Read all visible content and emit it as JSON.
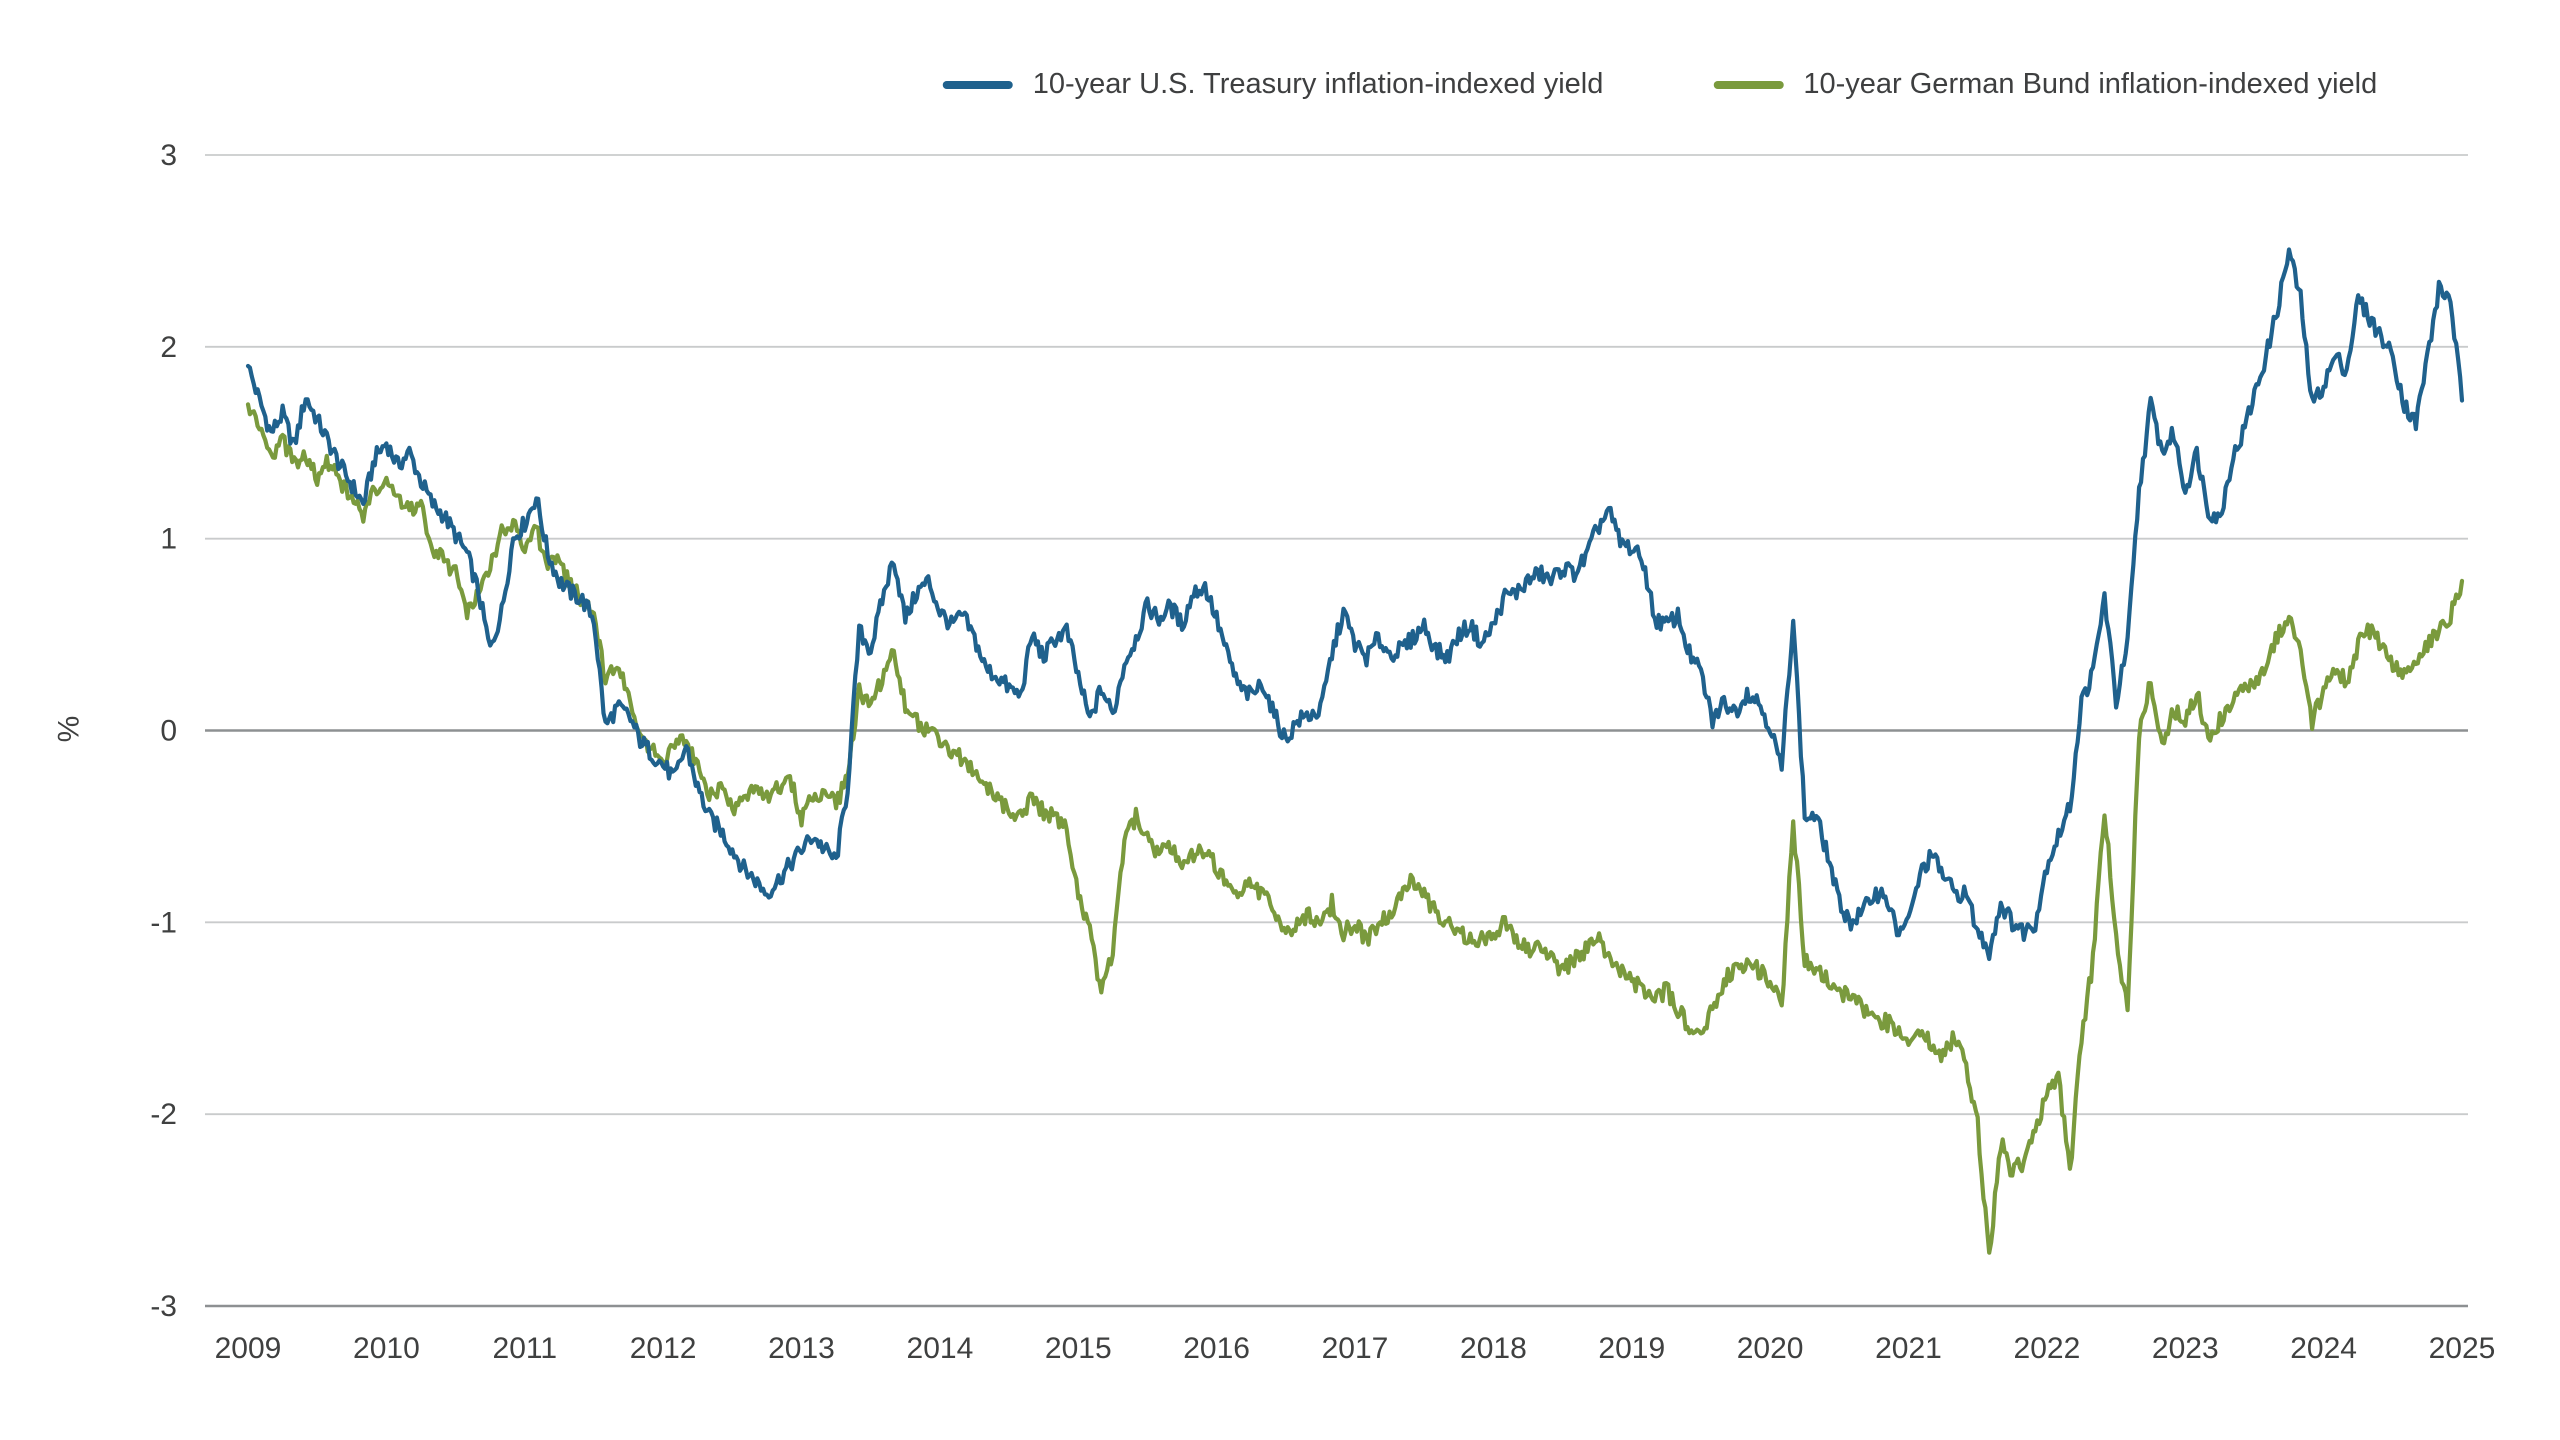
{
  "page": {
    "background": "#ffffff"
  },
  "chart_data": {
    "type": "line",
    "title": "",
    "xlabel": "",
    "ylabel": "%",
    "ylim": [
      -3,
      3
    ],
    "grid": "horizontal",
    "legend_position": "top-center",
    "x_start": 2009,
    "x_step_months": 1,
    "x_ticks": [
      2009,
      2010,
      2011,
      2012,
      2013,
      2014,
      2015,
      2016,
      2017,
      2018,
      2019,
      2020,
      2021,
      2022,
      2023,
      2024,
      2025
    ],
    "y_ticks": [
      3,
      2,
      1,
      0,
      -1,
      -2,
      -3
    ],
    "series": [
      {
        "name": "10-year U.S. Treasury inflation-indexed yield",
        "color": "#1f618d",
        "values": [
          1.9,
          1.72,
          1.55,
          1.65,
          1.48,
          1.74,
          1.62,
          1.5,
          1.38,
          1.28,
          1.18,
          1.42,
          1.5,
          1.38,
          1.45,
          1.3,
          1.18,
          1.12,
          1.02,
          0.92,
          0.72,
          0.42,
          0.62,
          1.0,
          1.08,
          1.22,
          0.92,
          0.78,
          0.72,
          0.68,
          0.58,
          0.02,
          0.12,
          0.08,
          -0.05,
          -0.12,
          -0.18,
          -0.25,
          -0.08,
          -0.3,
          -0.45,
          -0.52,
          -0.62,
          -0.72,
          -0.78,
          -0.85,
          -0.78,
          -0.7,
          -0.62,
          -0.55,
          -0.62,
          -0.68,
          -0.3,
          0.52,
          0.42,
          0.68,
          0.9,
          0.58,
          0.72,
          0.78,
          0.62,
          0.55,
          0.6,
          0.48,
          0.32,
          0.28,
          0.22,
          0.18,
          0.5,
          0.38,
          0.48,
          0.52,
          0.28,
          0.05,
          0.22,
          0.08,
          0.35,
          0.48,
          0.65,
          0.58,
          0.65,
          0.55,
          0.72,
          0.75,
          0.58,
          0.38,
          0.22,
          0.18,
          0.25,
          0.08,
          -0.05,
          0.05,
          0.08,
          0.1,
          0.4,
          0.62,
          0.45,
          0.38,
          0.48,
          0.4,
          0.42,
          0.48,
          0.55,
          0.42,
          0.38,
          0.5,
          0.55,
          0.45,
          0.55,
          0.7,
          0.72,
          0.78,
          0.82,
          0.78,
          0.85,
          0.82,
          0.9,
          1.05,
          1.15,
          0.98,
          0.95,
          0.88,
          0.58,
          0.55,
          0.6,
          0.4,
          0.3,
          0.05,
          0.15,
          0.1,
          0.2,
          0.15,
          0.02,
          -0.2,
          0.6,
          -0.45,
          -0.45,
          -0.65,
          -0.9,
          -1.0,
          -0.95,
          -0.85,
          -0.85,
          -1.05,
          -1.0,
          -0.75,
          -0.65,
          -0.75,
          -0.85,
          -0.85,
          -1.05,
          -1.15,
          -0.9,
          -1.0,
          -1.05,
          -1.0,
          -0.7,
          -0.55,
          -0.4,
          0.15,
          0.3,
          0.7,
          0.15,
          0.45,
          1.25,
          1.7,
          1.45,
          1.55,
          1.25,
          1.45,
          1.15,
          1.1,
          1.4,
          1.55,
          1.75,
          1.95,
          2.2,
          2.5,
          2.25,
          1.7,
          1.8,
          1.95,
          1.88,
          2.25,
          2.15,
          2.05,
          1.95,
          1.7,
          1.6,
          1.95,
          2.3,
          2.25,
          1.72
        ]
      },
      {
        "name": "10-year German Bund inflation-indexed yield",
        "color": "#7a9a3d",
        "values": [
          1.7,
          1.55,
          1.42,
          1.52,
          1.38,
          1.45,
          1.32,
          1.4,
          1.28,
          1.22,
          1.12,
          1.25,
          1.3,
          1.2,
          1.15,
          1.18,
          0.95,
          0.88,
          0.82,
          0.62,
          0.7,
          0.85,
          1.05,
          1.08,
          0.95,
          1.05,
          0.85,
          0.9,
          0.75,
          0.68,
          0.62,
          0.25,
          0.35,
          0.18,
          0.0,
          -0.1,
          -0.15,
          -0.08,
          -0.05,
          -0.2,
          -0.35,
          -0.3,
          -0.42,
          -0.35,
          -0.28,
          -0.35,
          -0.3,
          -0.25,
          -0.45,
          -0.35,
          -0.3,
          -0.4,
          -0.2,
          0.2,
          0.12,
          0.28,
          0.4,
          0.12,
          0.05,
          -0.02,
          -0.05,
          -0.12,
          -0.15,
          -0.22,
          -0.3,
          -0.35,
          -0.42,
          -0.45,
          -0.35,
          -0.42,
          -0.45,
          -0.52,
          -0.85,
          -1.05,
          -1.38,
          -1.15,
          -0.58,
          -0.45,
          -0.55,
          -0.65,
          -0.6,
          -0.7,
          -0.65,
          -0.62,
          -0.72,
          -0.82,
          -0.85,
          -0.8,
          -0.85,
          -0.95,
          -1.05,
          -1.0,
          -0.95,
          -1.02,
          -0.9,
          -1.05,
          -1.0,
          -1.1,
          -1.02,
          -0.95,
          -0.88,
          -0.78,
          -0.85,
          -0.95,
          -1.0,
          -1.05,
          -1.1,
          -1.08,
          -1.05,
          -1.0,
          -1.1,
          -1.15,
          -1.1,
          -1.2,
          -1.25,
          -1.2,
          -1.15,
          -1.08,
          -1.2,
          -1.25,
          -1.3,
          -1.35,
          -1.42,
          -1.35,
          -1.45,
          -1.55,
          -1.6,
          -1.45,
          -1.3,
          -1.25,
          -1.22,
          -1.25,
          -1.3,
          -1.45,
          -0.48,
          -1.2,
          -1.25,
          -1.3,
          -1.35,
          -1.4,
          -1.45,
          -1.5,
          -1.52,
          -1.55,
          -1.6,
          -1.55,
          -1.65,
          -1.7,
          -1.6,
          -1.75,
          -2.05,
          -2.75,
          -2.15,
          -2.3,
          -2.25,
          -2.1,
          -1.9,
          -1.8,
          -2.3,
          -1.6,
          -1.2,
          -0.4,
          -1.1,
          -1.45,
          0.0,
          0.25,
          -0.1,
          0.1,
          0.05,
          0.2,
          -0.05,
          0.05,
          0.15,
          0.2,
          0.25,
          0.35,
          0.5,
          0.6,
          0.4,
          0.05,
          0.2,
          0.32,
          0.25,
          0.45,
          0.52,
          0.45,
          0.35,
          0.3,
          0.35,
          0.45,
          0.52,
          0.6,
          0.78
        ]
      }
    ]
  }
}
